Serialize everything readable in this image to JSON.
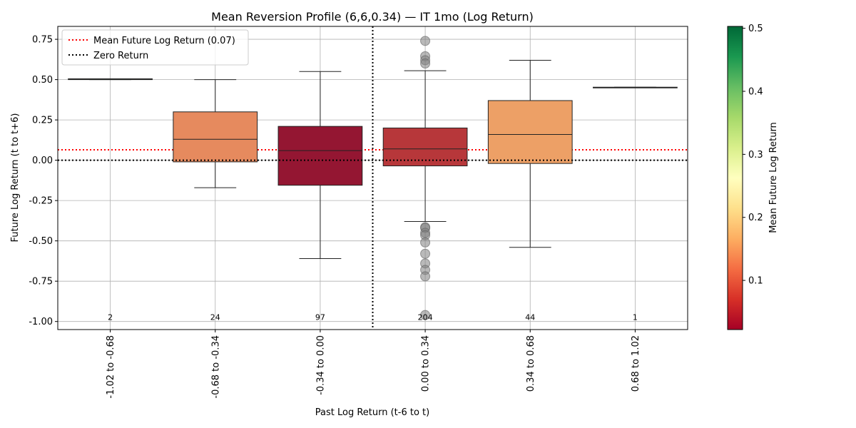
{
  "chart_data": {
    "type": "box",
    "title": "Mean Reversion Profile (6,6,0.34) — IT 1mo (Log Return)",
    "xlabel": "Past Log Return (t-6 to t)",
    "ylabel": "Future Log Return (t to t+6)",
    "ylim": [
      -1.05,
      0.83
    ],
    "yticks": [
      "-1.00",
      "-0.75",
      "-0.50",
      "-0.25",
      "0.00",
      "0.25",
      "0.50",
      "0.75"
    ],
    "ytick_values": [
      -1.0,
      -0.75,
      -0.5,
      -0.25,
      0.0,
      0.25,
      0.5,
      0.75
    ],
    "grid": true,
    "legend_position": "top-left",
    "mean_line": {
      "value": 0.065,
      "label": "Mean Future Log Return (0.07)",
      "color": "#ff0000"
    },
    "zero_line": {
      "value": 0.0,
      "label": "Zero Return",
      "color": "#000000"
    },
    "threshold_divider_after_index": 2,
    "categories": [
      "-1.02 to -0.68",
      "-0.68 to -0.34",
      "-0.34 to 0.00",
      "0.00 to 0.34",
      "0.34 to 0.68",
      "0.68 to 1.02"
    ],
    "counts": [
      "2",
      "24",
      "97",
      "204",
      "44",
      "1"
    ],
    "boxes": [
      {
        "q1": 0.5,
        "median": 0.503,
        "q3": 0.505,
        "whisker_low": 0.5,
        "whisker_high": 0.505,
        "mean": 0.503,
        "color": "#9ccf63",
        "outliers": []
      },
      {
        "q1": -0.01,
        "median": 0.13,
        "q3": 0.3,
        "whisker_low": -0.17,
        "whisker_high": 0.5,
        "mean": 0.14,
        "color": "#e68a5e",
        "outliers": []
      },
      {
        "q1": -0.155,
        "median": 0.06,
        "q3": 0.21,
        "whisker_low": -0.61,
        "whisker_high": 0.55,
        "mean": 0.03,
        "color": "#941632",
        "outliers": []
      },
      {
        "q1": -0.035,
        "median": 0.07,
        "q3": 0.2,
        "whisker_low": -0.38,
        "whisker_high": 0.555,
        "mean": 0.07,
        "color": "#b7373a",
        "outliers": [
          0.74,
          0.645,
          0.62,
          0.6,
          -0.415,
          -0.42,
          -0.45,
          -0.465,
          -0.51,
          -0.58,
          -0.64,
          -0.68,
          -0.72,
          -0.96
        ]
      },
      {
        "q1": -0.02,
        "median": 0.16,
        "q3": 0.37,
        "whisker_low": -0.54,
        "whisker_high": 0.62,
        "mean": 0.17,
        "color": "#eda066",
        "outliers": []
      },
      {
        "q1": 0.45,
        "median": 0.452,
        "q3": 0.453,
        "whisker_low": 0.45,
        "whisker_high": 0.453,
        "mean": 0.452,
        "color": "#b5dd75",
        "outliers": []
      }
    ],
    "colorbar": {
      "label": "Mean Future Log Return",
      "ticks": [
        "0.1",
        "0.2",
        "0.3",
        "0.4",
        "0.5"
      ],
      "tick_values": [
        0.1,
        0.2,
        0.3,
        0.4,
        0.5
      ],
      "range": [
        0.022,
        0.503
      ],
      "colormap": "RdYlGn",
      "colors": [
        "#a50026",
        "#d73027",
        "#f46d43",
        "#fdae61",
        "#fee08b",
        "#ffffbf",
        "#d9ef8b",
        "#a6d96a",
        "#66bd63",
        "#1a9850",
        "#006837"
      ]
    }
  }
}
